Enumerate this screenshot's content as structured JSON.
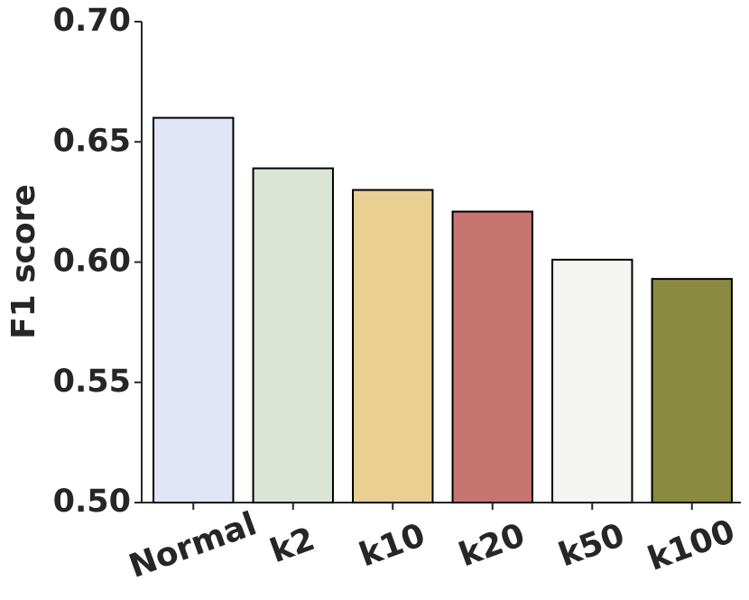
{
  "chart_data": {
    "type": "bar",
    "y_label": "F1 score",
    "categories": [
      "Normal",
      "k2",
      "k10",
      "k20",
      "k50",
      "k100"
    ],
    "values": [
      0.66,
      0.639,
      0.63,
      0.621,
      0.601,
      0.593
    ],
    "colors": [
      "#e0e6f6",
      "#dbe5d6",
      "#e9d092",
      "#c87571",
      "#f4f4f2",
      "#8a8a40"
    ],
    "ylim": [
      0.5,
      0.7
    ],
    "yticks": [
      {
        "value": 0.5,
        "label": "0.50"
      },
      0.55,
      {
        "value": 0.6,
        "label": "0.60"
      },
      0.65,
      {
        "value": 0.7,
        "label": "0.70"
      }
    ],
    "grid": false
  }
}
